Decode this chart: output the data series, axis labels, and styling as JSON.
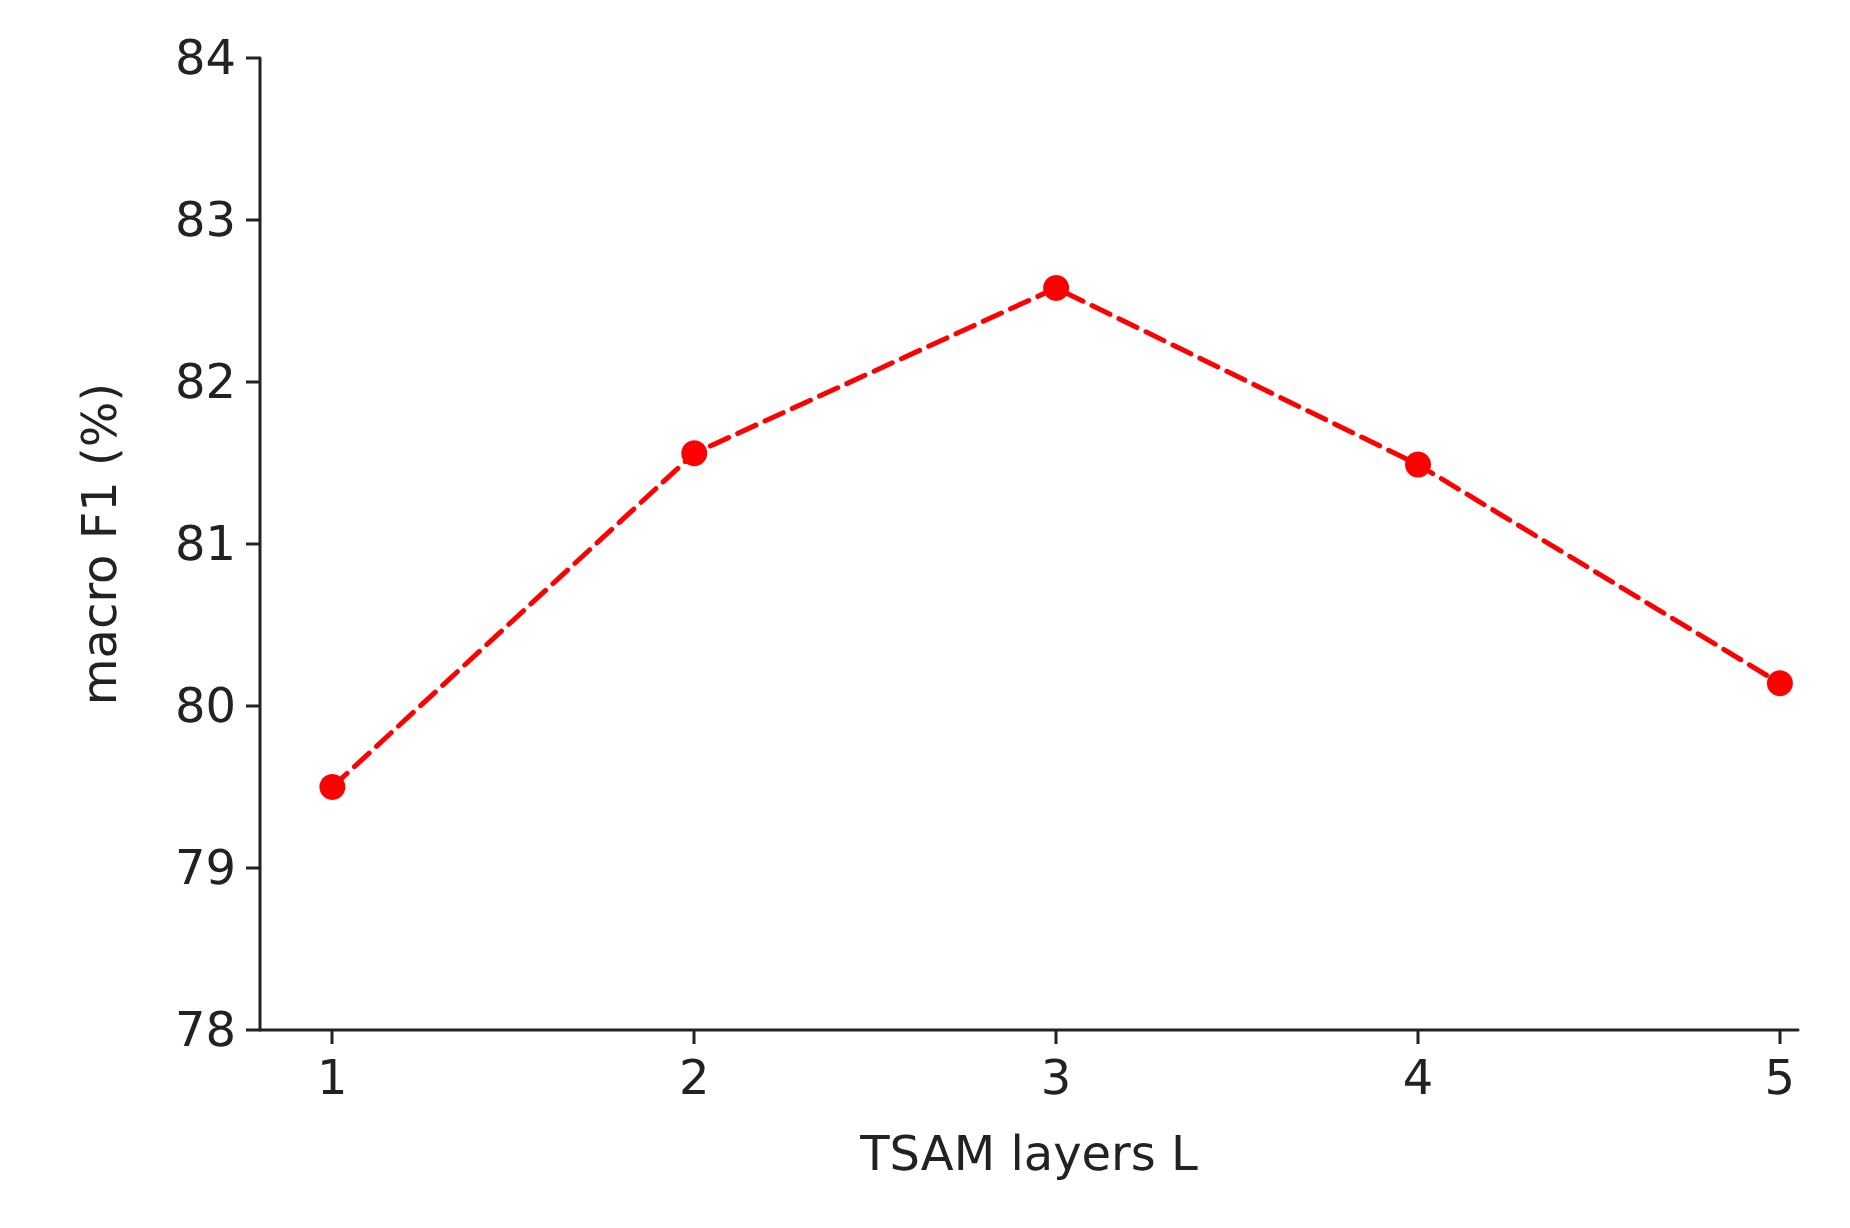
{
  "chart_data": {
    "type": "line",
    "xlabel": "TSAM layers L",
    "ylabel": "macro F1 (%)",
    "x": [
      1,
      2,
      3,
      4,
      5
    ],
    "series": [
      {
        "color": "#ff0000",
        "values": [
          79.5,
          81.56,
          82.58,
          81.49,
          80.14
        ]
      }
    ],
    "xlim": [
      0.8,
      5.05
    ],
    "xticks": [
      1,
      2,
      3,
      4,
      5
    ],
    "ylim": [
      78,
      84
    ],
    "yticks": [
      78,
      79,
      80,
      81,
      82,
      83,
      84
    ],
    "grid": false,
    "marker": "circle",
    "line_style": "dashed"
  }
}
